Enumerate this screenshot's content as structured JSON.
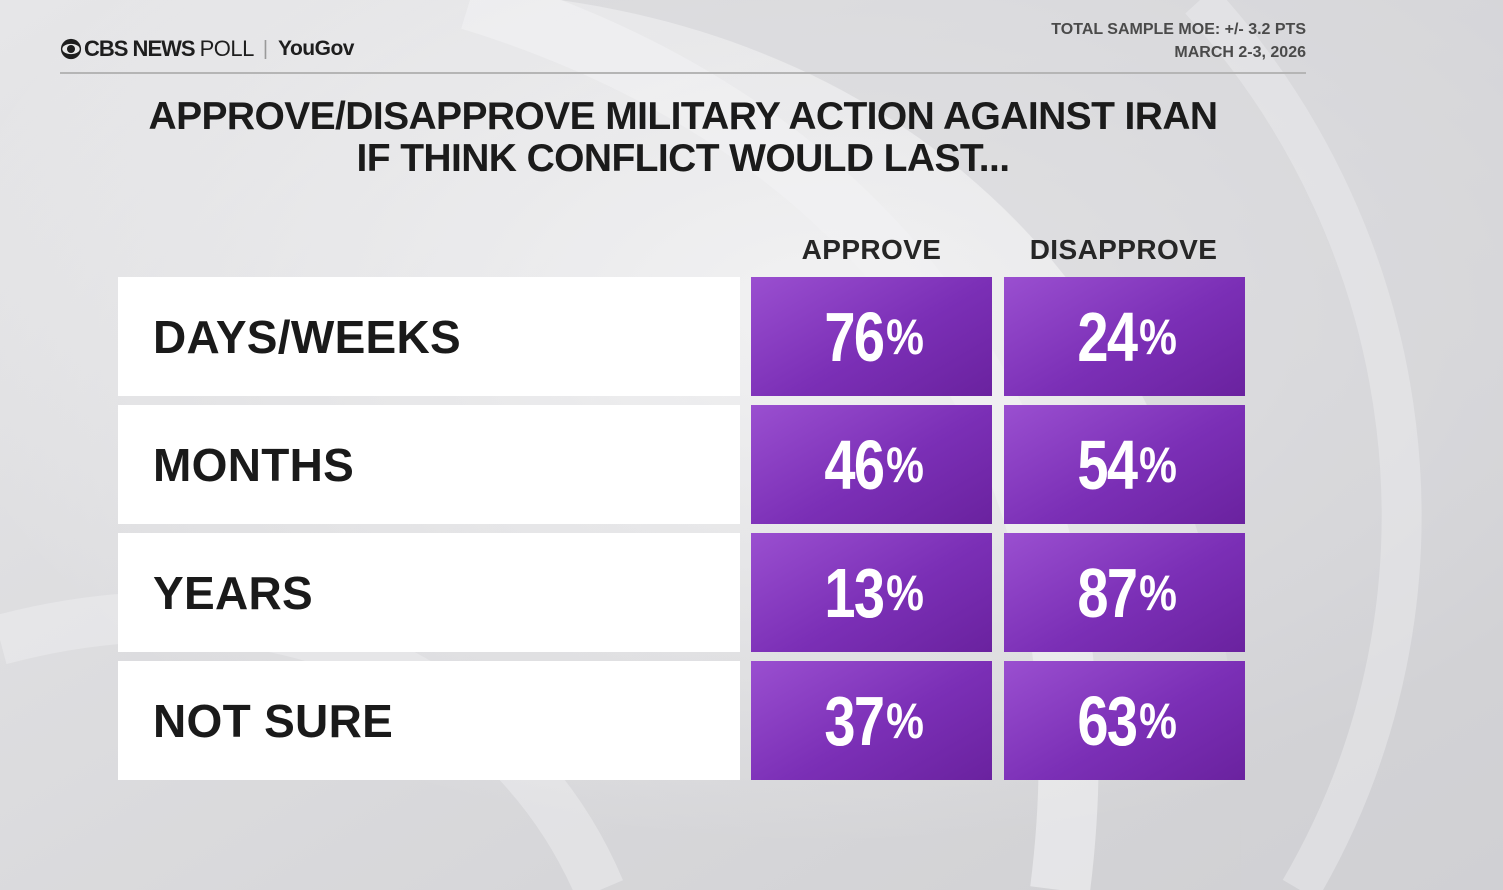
{
  "header": {
    "brand_cbs": "CBS NEWS",
    "brand_poll": "POLL",
    "brand_separator": "|",
    "brand_partner": "YouGov",
    "moe": "TOTAL SAMPLE MOE: +/- 3.2 PTS",
    "date": "MARCH 2-3, 2026"
  },
  "chart_data": {
    "type": "table",
    "title_line1": "APPROVE/DISAPPROVE MILITARY ACTION AGAINST IRAN",
    "title_line2": "IF THINK CONFLICT WOULD LAST...",
    "columns": [
      "APPROVE",
      "DISAPPROVE"
    ],
    "rows": [
      {
        "label": "DAYS/WEEKS",
        "values": [
          76,
          24
        ]
      },
      {
        "label": "MONTHS",
        "values": [
          46,
          54
        ]
      },
      {
        "label": "YEARS",
        "values": [
          13,
          87
        ]
      },
      {
        "label": "NOT SURE",
        "values": [
          37,
          63
        ]
      }
    ],
    "unit": "%",
    "cell_color": "#7b2fb6"
  }
}
